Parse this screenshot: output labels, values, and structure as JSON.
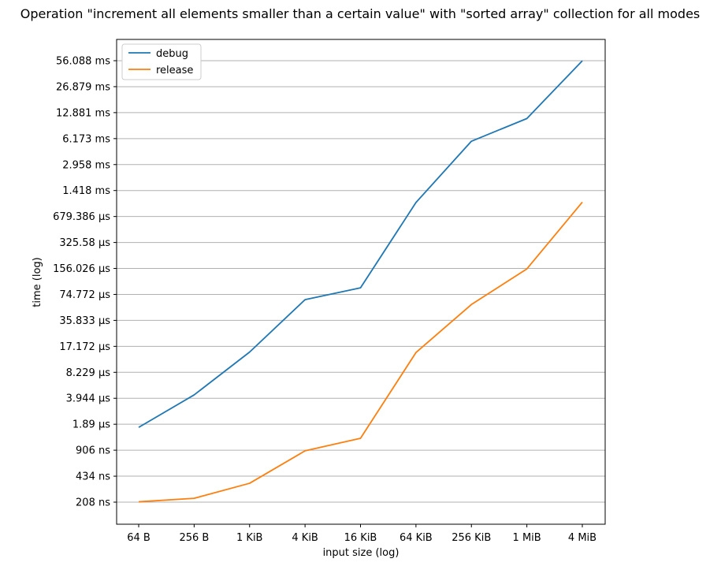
{
  "chart_data": {
    "type": "line",
    "title": "Operation \"increment all elements smaller than a certain value\" with \"sorted array\" collection for all modes",
    "xlabel": "input size (log)",
    "ylabel": "time (log)",
    "x_scale": "log",
    "y_scale": "log",
    "grid": "horizontal",
    "legend_position": "top-left",
    "categories": [
      "64 B",
      "256 B",
      "1 KiB",
      "4 KiB",
      "16 KiB",
      "64 KiB",
      "256 KiB",
      "1 MiB",
      "4 MiB"
    ],
    "y_ticks_ns": [
      208,
      434,
      906,
      1890,
      3944,
      8229,
      17172,
      35833,
      74772,
      156026,
      325580,
      679386,
      1418000,
      2958000,
      6173000,
      12881000,
      26879000,
      56088000
    ],
    "y_tick_labels": [
      "208 ns",
      "434 ns",
      "906 ns",
      "1.89 µs",
      "3.944 µs",
      "8.229 µs",
      "17.172 µs",
      "35.833 µs",
      "74.772 µs",
      "156.026 µs",
      "325.58 µs",
      "679.386 µs",
      "1.418 ms",
      "2.958 ms",
      "6.173 ms",
      "12.881 ms",
      "26.879 ms",
      "56.088 ms"
    ],
    "ylim_ns": [
      140,
      80000000
    ],
    "series": [
      {
        "name": "debug",
        "color": "#1f77b4",
        "values_ns": [
          1730,
          4340,
          14600,
          64400,
          90000,
          1010000,
          5730000,
          10900000,
          56000000
        ]
      },
      {
        "name": "release",
        "color": "#ff7f0e",
        "values_ns": [
          210,
          232,
          355,
          890,
          1270,
          14400,
          56200,
          154000,
          1020000
        ]
      }
    ]
  }
}
